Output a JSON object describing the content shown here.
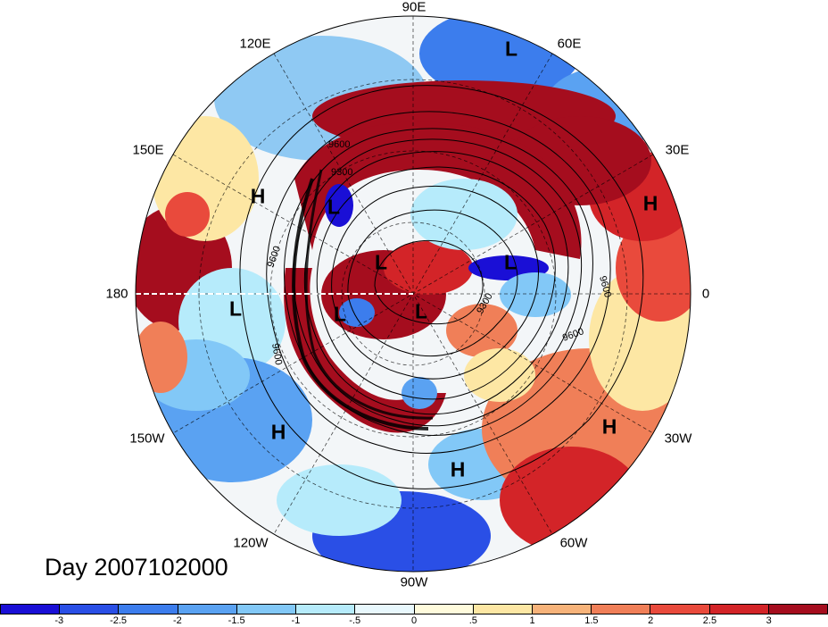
{
  "title": "Day 2007102000",
  "longitude_labels": {
    "lon_90e": "90E",
    "lon_60e": "60E",
    "lon_120e": "120E",
    "lon_30e": "30E",
    "lon_150e": "150E",
    "lon_180": "180",
    "lon_0": "0",
    "lon_150w": "150W",
    "lon_30w": "30W",
    "lon_120w": "120W",
    "lon_60w": "60W",
    "lon_90w": "90W"
  },
  "contour_labels": [
    "9600",
    "9300",
    "9600",
    "9600",
    "9300",
    "9600",
    "9600"
  ],
  "pressure_centers": [
    {
      "label": "L",
      "kind": "low"
    },
    {
      "label": "H",
      "kind": "high"
    },
    {
      "label": "L",
      "kind": "low"
    },
    {
      "label": "H",
      "kind": "high"
    },
    {
      "label": "L",
      "kind": "low"
    },
    {
      "label": "L",
      "kind": "low"
    },
    {
      "label": "L",
      "kind": "low"
    },
    {
      "label": "L",
      "kind": "low"
    },
    {
      "label": "L",
      "kind": "low"
    },
    {
      "label": "H",
      "kind": "high"
    },
    {
      "label": "H",
      "kind": "high"
    },
    {
      "label": "H",
      "kind": "high"
    }
  ],
  "colorbar": {
    "colors": [
      "#1a0fd6",
      "#2a4fe6",
      "#3c7ded",
      "#5aa2f2",
      "#82c8f7",
      "#b6ebfb",
      "#e8f8fd",
      "#fffbdc",
      "#fde7a4",
      "#f7b37a",
      "#f07f58",
      "#e94a3c",
      "#d32428",
      "#a50d1e"
    ],
    "tick_labels": [
      "-3",
      "-2.5",
      "-2",
      "-1.5",
      "-1",
      "-.5",
      "0",
      ".5",
      "1",
      "1.5",
      "2",
      "2.5",
      "3"
    ]
  }
}
